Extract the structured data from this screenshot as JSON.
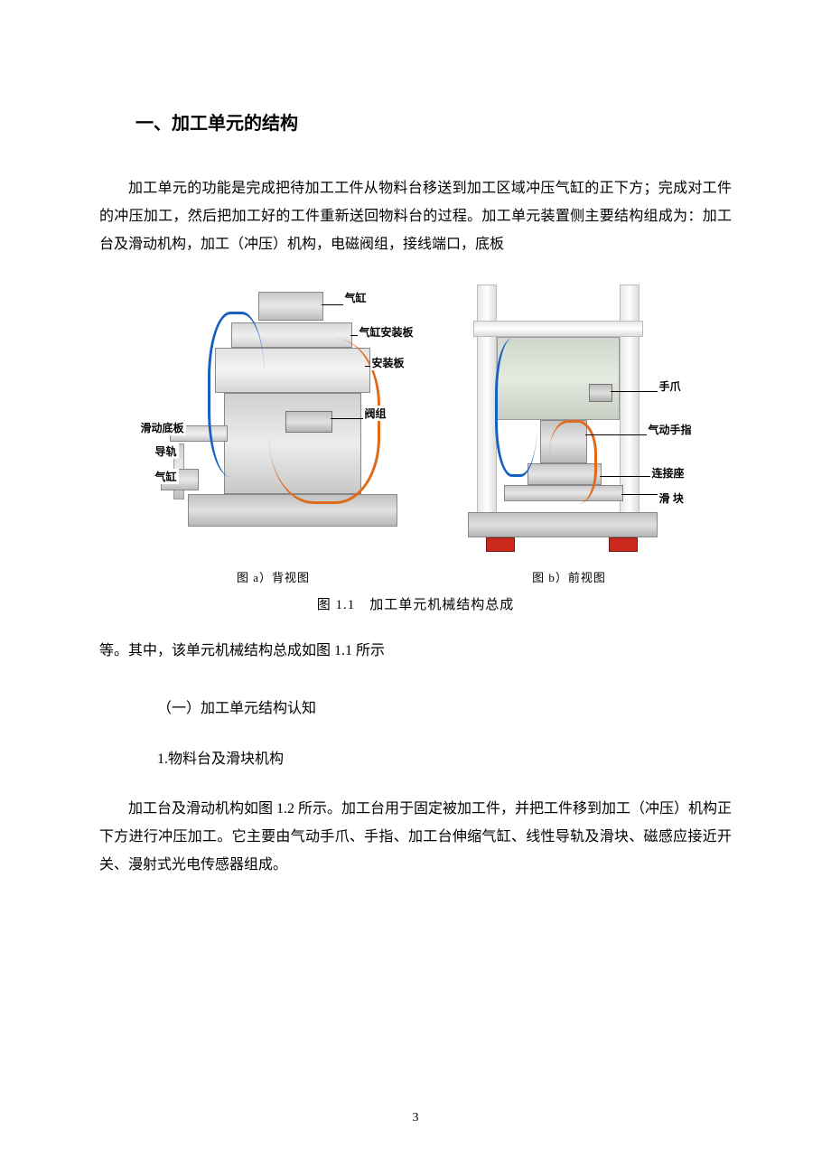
{
  "section_title": "一、加工单元的结构",
  "para1": "加工单元的功能是完成把待加工工件从物料台移送到加工区域冲压气缸的正下方；完成对工件的冲压加工，然后把加工好的工件重新送回物料台的过程。加工单元装置侧主要结构组成为：加工台及滑动机构，加工（冲压）机构，电磁阀组，接线端口，底板",
  "figure": {
    "a": {
      "sub_caption": "图 a）背视图",
      "labels": {
        "cylinder_top": "气缸",
        "cyl_mount_plate": "气缸安装板",
        "mount_plate": "安装板",
        "valve_group": "阀组",
        "slide_base": "滑动底板",
        "rail": "导轨",
        "cylinder_side": "气缸"
      }
    },
    "b": {
      "sub_caption": "图 b）前视图",
      "labels": {
        "claw": "手爪",
        "pneumatic_finger": "气动手指",
        "connector_seat": "连接座",
        "slider": "滑 块"
      }
    },
    "main_caption": "图 1.1　加工单元机械结构总成",
    "colors": {
      "hose_orange": "#e06a1b",
      "hose_blue": "#1560c0",
      "foot_red": "#cc2a1e",
      "metal_light": "#e8e8e8",
      "metal_dark": "#bcbcbc"
    }
  },
  "para2": "等。其中，该单元机械结构总成如图 1.1 所示",
  "subheading1": "（一）加工单元结构认知",
  "subheading2": "1.物料台及滑块机构",
  "para3": "加工台及滑动机构如图 1.2 所示。加工台用于固定被加工件，并把工件移到加工（冲压）机构正下方进行冲压加工。它主要由气动手爪、手指、加工台伸缩气缸、线性导轨及滑块、磁感应接近开关、漫射式光电传感器组成。",
  "page_number": "3"
}
